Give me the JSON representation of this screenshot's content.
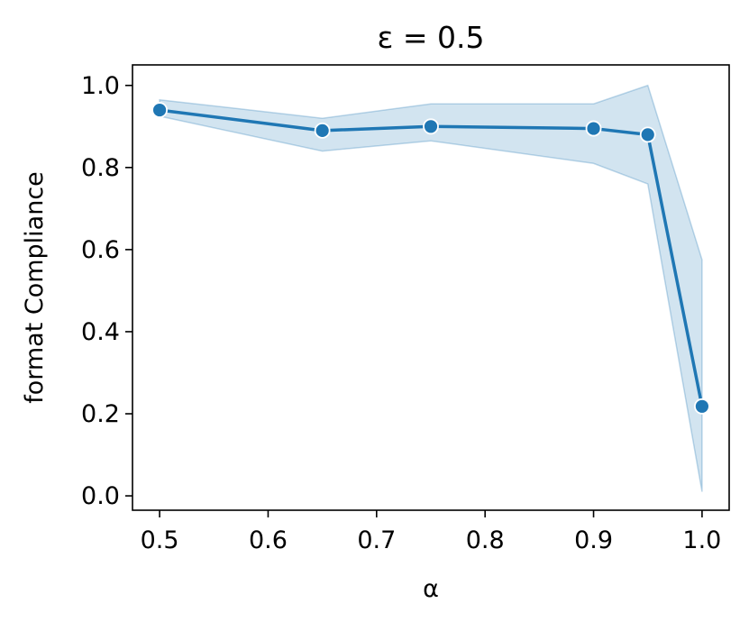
{
  "chart_data": {
    "type": "line",
    "title": "ε = 0.5",
    "xlabel": "α",
    "ylabel": "format Compliance",
    "xlim": [
      0.475,
      1.025
    ],
    "ylim": [
      -0.035,
      1.05
    ],
    "x_ticks": [
      "0.5",
      "0.6",
      "0.7",
      "0.8",
      "0.9",
      "1.0"
    ],
    "y_ticks": [
      "0.0",
      "0.2",
      "0.4",
      "0.6",
      "0.8",
      "1.0"
    ],
    "grid": false,
    "legend": "none",
    "series": [
      {
        "x": [
          0.5,
          0.65,
          0.75,
          0.9,
          0.95,
          1.0
        ],
        "y": [
          0.94,
          0.89,
          0.9,
          0.895,
          0.88,
          0.218
        ],
        "ci_lower": [
          0.925,
          0.84,
          0.865,
          0.81,
          0.76,
          0.01
        ],
        "ci_upper": [
          0.965,
          0.92,
          0.955,
          0.955,
          1.0,
          0.575
        ],
        "color": "#1f77b4",
        "band_color": "#1f77b4"
      }
    ]
  }
}
